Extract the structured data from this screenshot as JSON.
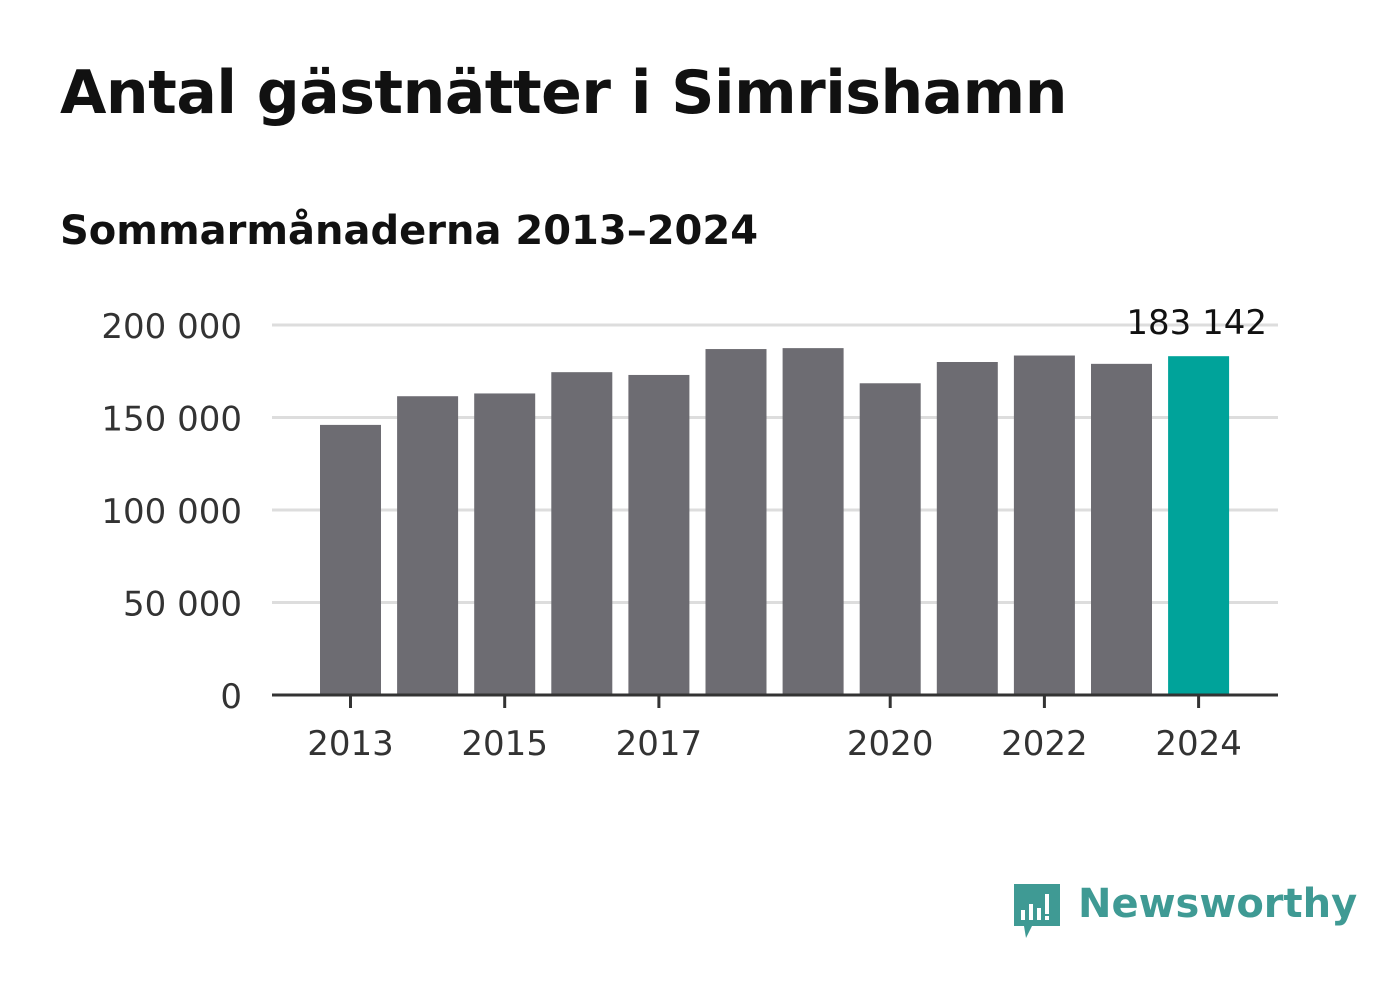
{
  "header": {
    "title": "Antal gästnätter i Simrishamn",
    "subtitle": "Sommarmånaderna 2013–2024"
  },
  "brand": {
    "name": "Newsworthy",
    "color": "#3f9a94",
    "icon": "bar-chart-speech-bubble-icon"
  },
  "colors": {
    "bar": "#6d6c72",
    "highlight": "#00a39a",
    "grid": "#dddddd",
    "axis": "#333333"
  },
  "chart_data": {
    "type": "bar",
    "title": "Antal gästnätter i Simrishamn",
    "subtitle": "Sommarmånaderna 2013–2024",
    "categories": [
      "2013",
      "2014",
      "2015",
      "2016",
      "2017",
      "2018",
      "2019",
      "2020",
      "2021",
      "2022",
      "2023",
      "2024"
    ],
    "values": [
      146000,
      161500,
      163000,
      174500,
      173000,
      187000,
      187500,
      168500,
      180000,
      183500,
      179000,
      183142
    ],
    "x_tick_labels": [
      "2013",
      "2015",
      "2017",
      "2020",
      "2022",
      "2024"
    ],
    "y_ticks": [
      0,
      50000,
      100000,
      150000,
      200000
    ],
    "y_tick_labels": [
      "0",
      "50 000",
      "100 000",
      "150 000",
      "200 000"
    ],
    "ylim": [
      0,
      200000
    ],
    "highlight_index": 11,
    "annotation": "183 142",
    "grid": true,
    "xlabel": "",
    "ylabel": ""
  }
}
